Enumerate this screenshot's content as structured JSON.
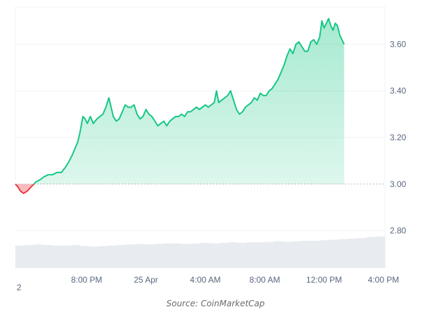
{
  "chart_data": {
    "type": "area",
    "baseline": 3.0,
    "ylim": [
      2.64,
      3.76
    ],
    "y_ticks": [
      "2.80",
      "3.00",
      "3.20",
      "3.40",
      "3.60"
    ],
    "y_tick_values": [
      2.8,
      3.0,
      3.2,
      3.4,
      3.6
    ],
    "x_ticks": [
      {
        "label": "8:00 PM",
        "t": 6
      },
      {
        "label": "25 Apr",
        "t": 10
      },
      {
        "label": "4:00 AM",
        "t": 14
      },
      {
        "label": "8:00 AM",
        "t": 18
      },
      {
        "label": "12:00 PM",
        "t": 22
      },
      {
        "label": "4:00 PM",
        "t": 26
      }
    ],
    "x_left_fragment": "2",
    "x_range": [
      1.2,
      26.1
    ],
    "colors": {
      "up": "#16c784",
      "down": "#ea3943",
      "volume": "#e8ebef",
      "grid": "#eff2f5"
    },
    "series": [
      {
        "values": [
          [
            1.2,
            3.0
          ],
          [
            1.35,
            2.99
          ],
          [
            1.55,
            2.97
          ],
          [
            1.75,
            2.96
          ],
          [
            2.0,
            2.97
          ],
          [
            2.3,
            2.99
          ],
          [
            2.6,
            3.01
          ],
          [
            2.9,
            3.02
          ],
          [
            3.1,
            3.03
          ],
          [
            3.4,
            3.04
          ],
          [
            3.7,
            3.04
          ],
          [
            4.0,
            3.05
          ],
          [
            4.3,
            3.05
          ],
          [
            4.55,
            3.07
          ],
          [
            4.75,
            3.09
          ],
          [
            5.0,
            3.12
          ],
          [
            5.2,
            3.15
          ],
          [
            5.4,
            3.18
          ],
          [
            5.55,
            3.22
          ],
          [
            5.75,
            3.29
          ],
          [
            5.9,
            3.28
          ],
          [
            6.05,
            3.26
          ],
          [
            6.25,
            3.29
          ],
          [
            6.45,
            3.26
          ],
          [
            6.7,
            3.28
          ],
          [
            6.9,
            3.29
          ],
          [
            7.1,
            3.3
          ],
          [
            7.3,
            3.33
          ],
          [
            7.5,
            3.37
          ],
          [
            7.65,
            3.33
          ],
          [
            7.8,
            3.29
          ],
          [
            8.0,
            3.27
          ],
          [
            8.2,
            3.28
          ],
          [
            8.4,
            3.31
          ],
          [
            8.6,
            3.34
          ],
          [
            8.8,
            3.33
          ],
          [
            9.0,
            3.33
          ],
          [
            9.2,
            3.34
          ],
          [
            9.4,
            3.3
          ],
          [
            9.6,
            3.28
          ],
          [
            9.8,
            3.29
          ],
          [
            10.0,
            3.32
          ],
          [
            10.2,
            3.3
          ],
          [
            10.4,
            3.29
          ],
          [
            10.6,
            3.27
          ],
          [
            10.8,
            3.25
          ],
          [
            11.0,
            3.26
          ],
          [
            11.2,
            3.27
          ],
          [
            11.4,
            3.25
          ],
          [
            11.6,
            3.27
          ],
          [
            11.8,
            3.28
          ],
          [
            12.0,
            3.29
          ],
          [
            12.2,
            3.29
          ],
          [
            12.4,
            3.3
          ],
          [
            12.6,
            3.29
          ],
          [
            12.8,
            3.31
          ],
          [
            13.0,
            3.31
          ],
          [
            13.2,
            3.32
          ],
          [
            13.4,
            3.33
          ],
          [
            13.6,
            3.32
          ],
          [
            13.8,
            3.33
          ],
          [
            14.0,
            3.34
          ],
          [
            14.2,
            3.33
          ],
          [
            14.4,
            3.34
          ],
          [
            14.6,
            3.35
          ],
          [
            14.75,
            3.4
          ],
          [
            14.9,
            3.35
          ],
          [
            15.1,
            3.36
          ],
          [
            15.3,
            3.37
          ],
          [
            15.5,
            3.38
          ],
          [
            15.7,
            3.4
          ],
          [
            15.9,
            3.36
          ],
          [
            16.1,
            3.32
          ],
          [
            16.3,
            3.3
          ],
          [
            16.5,
            3.31
          ],
          [
            16.7,
            3.33
          ],
          [
            16.9,
            3.34
          ],
          [
            17.1,
            3.35
          ],
          [
            17.3,
            3.37
          ],
          [
            17.5,
            3.36
          ],
          [
            17.7,
            3.39
          ],
          [
            17.9,
            3.38
          ],
          [
            18.1,
            3.38
          ],
          [
            18.3,
            3.4
          ],
          [
            18.5,
            3.41
          ],
          [
            18.7,
            3.43
          ],
          [
            18.9,
            3.45
          ],
          [
            19.1,
            3.48
          ],
          [
            19.3,
            3.51
          ],
          [
            19.5,
            3.55
          ],
          [
            19.7,
            3.58
          ],
          [
            19.9,
            3.56
          ],
          [
            20.1,
            3.6
          ],
          [
            20.3,
            3.61
          ],
          [
            20.5,
            3.59
          ],
          [
            20.7,
            3.57
          ],
          [
            20.9,
            3.57
          ],
          [
            21.1,
            3.61
          ],
          [
            21.3,
            3.62
          ],
          [
            21.5,
            3.6
          ],
          [
            21.7,
            3.63
          ],
          [
            21.85,
            3.7
          ],
          [
            22.0,
            3.67
          ],
          [
            22.15,
            3.69
          ],
          [
            22.3,
            3.71
          ],
          [
            22.45,
            3.68
          ],
          [
            22.6,
            3.66
          ],
          [
            22.75,
            3.69
          ],
          [
            22.9,
            3.68
          ],
          [
            23.05,
            3.64
          ],
          [
            23.2,
            3.62
          ],
          [
            23.35,
            3.6
          ]
        ]
      }
    ],
    "volume": [
      0.42,
      0.43,
      0.44,
      0.43,
      0.42,
      0.42,
      0.43,
      0.41,
      0.4,
      0.41,
      0.42,
      0.43,
      0.44,
      0.45,
      0.44,
      0.45,
      0.46,
      0.46,
      0.45,
      0.46,
      0.47,
      0.46,
      0.47,
      0.48,
      0.47,
      0.48,
      0.48,
      0.49,
      0.5,
      0.49,
      0.5,
      0.51,
      0.51,
      0.52,
      0.53,
      0.54,
      0.55,
      0.56,
      0.58,
      0.59
    ]
  },
  "source": "Source: CoinMarketCap"
}
